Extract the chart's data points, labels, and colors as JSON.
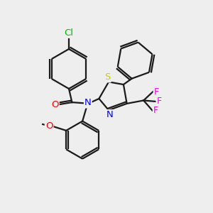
{
  "bg_color": "#eeeeee",
  "bond_color": "#1a1a1a",
  "bond_width": 1.6,
  "atom_colors": {
    "Cl": "#00bb00",
    "O": "#ff0000",
    "N": "#0000ff",
    "S": "#cccc00",
    "F": "#ee00ee",
    "C": "#1a1a1a"
  },
  "xlim": [
    0,
    10
  ],
  "ylim": [
    0,
    10
  ]
}
